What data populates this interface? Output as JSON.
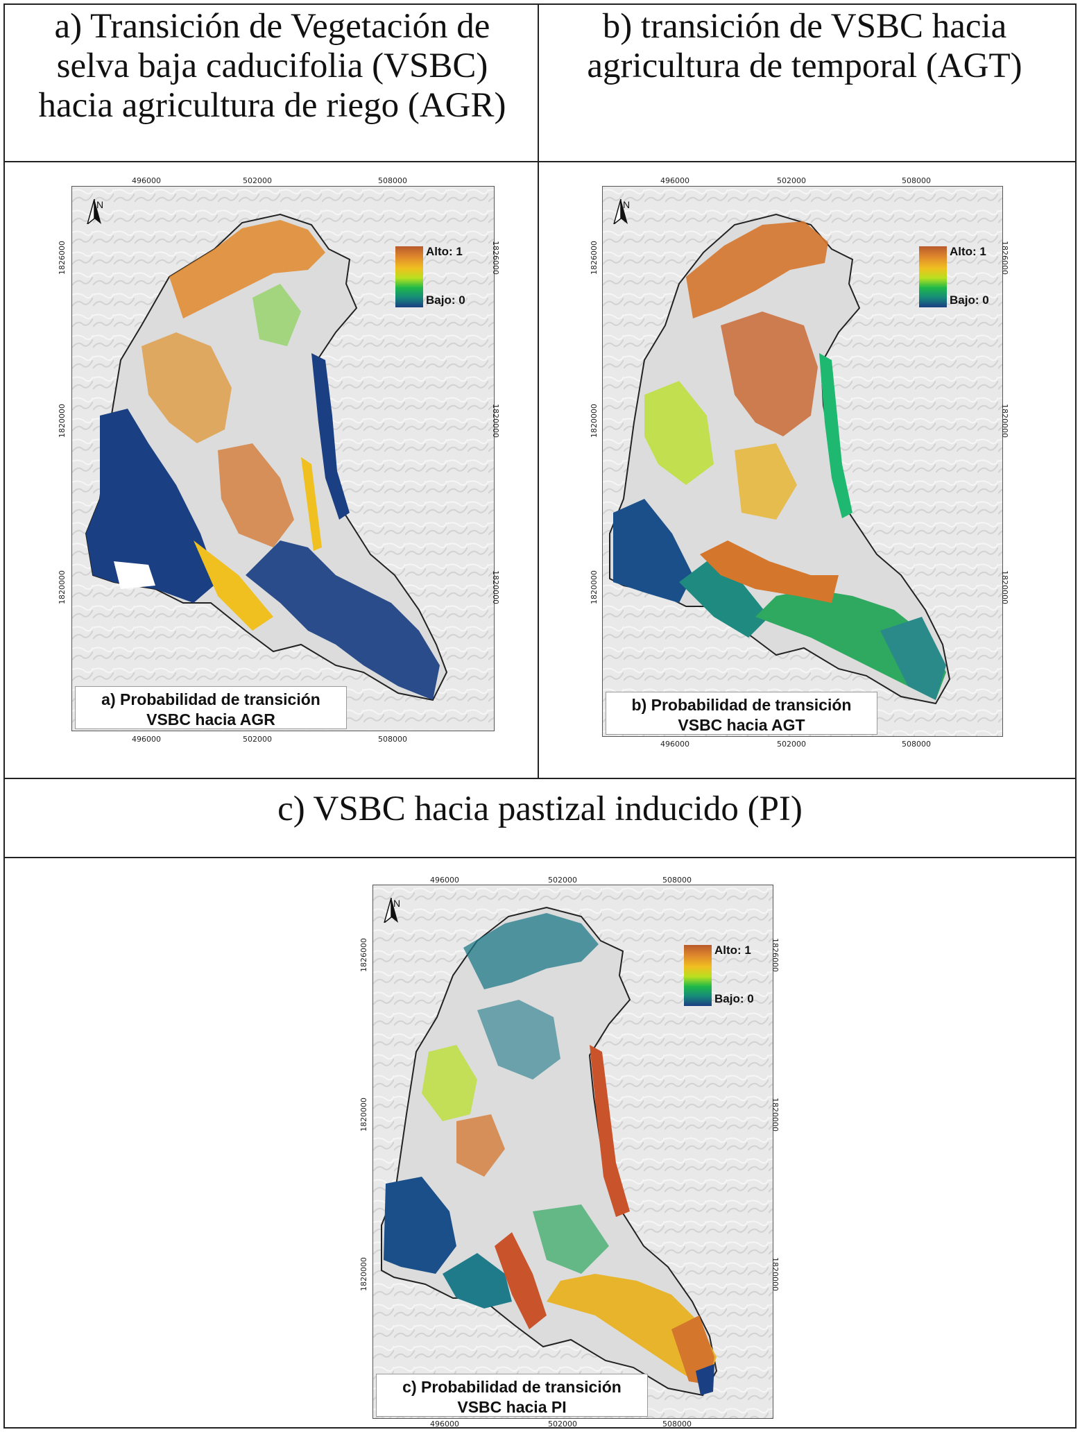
{
  "panels": {
    "a": {
      "title": "a) Transición de Vegetación de selva baja caducifolia (VSBC) hacia agricultura de riego (AGR)",
      "caption_line1": "a) Probabilidad de transición",
      "caption_line2": "VSBC hacia AGR",
      "legend_high": "Alto: 1",
      "legend_low": "Bajo: 0",
      "x_ticks": [
        "496000",
        "502000",
        "508000"
      ],
      "y_ticks": [
        "1826000",
        "1820000",
        "1820000"
      ],
      "north": "N"
    },
    "b": {
      "title": "b) transición de VSBC hacia agricultura de temporal (AGT)",
      "caption_line1": "b) Probabilidad de transición",
      "caption_line2": "VSBC hacia AGT",
      "legend_high": "Alto: 1",
      "legend_low": "Bajo: 0",
      "x_ticks": [
        "496000",
        "502000",
        "508000"
      ],
      "y_ticks": [
        "1826000",
        "1820000",
        "1820000"
      ],
      "north": "N"
    },
    "c": {
      "title": "c) VSBC hacia pastizal inducido (PI)",
      "caption_line1": "c) Probabilidad de transición",
      "caption_line2": "VSBC hacia PI",
      "legend_high": "Alto: 1",
      "legend_low": "Bajo: 0",
      "x_ticks": [
        "496000",
        "502000",
        "508000"
      ],
      "y_ticks": [
        "1826000",
        "1820000",
        "1820000"
      ],
      "north": "N"
    }
  },
  "colors": {
    "high": "#b85a2c",
    "mid": "#f0c020",
    "low": "#1a3f82",
    "hillshade": "#e6e6e6"
  }
}
